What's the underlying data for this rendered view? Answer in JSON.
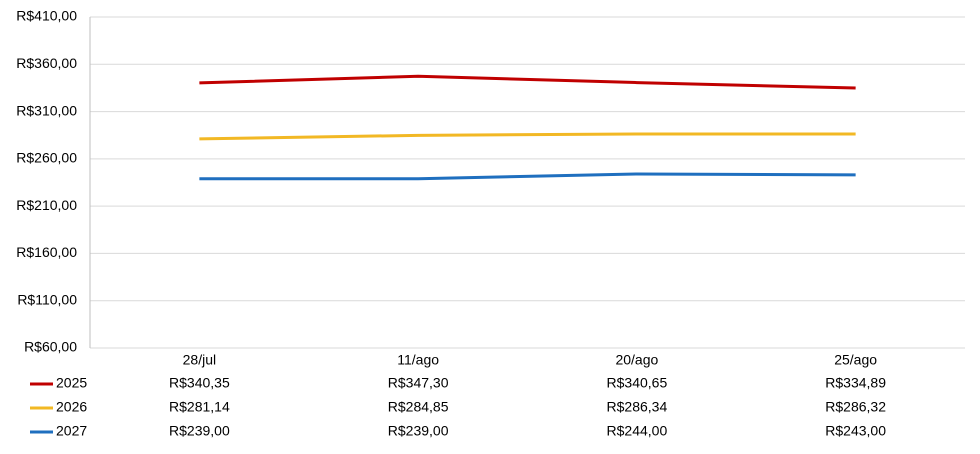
{
  "chart_data": {
    "type": "line",
    "categories": [
      "28/jul",
      "11/ago",
      "20/ago",
      "25/ago"
    ],
    "series": [
      {
        "name": "2025",
        "color": "#c00000",
        "values": [
          340.35,
          347.3,
          340.65,
          334.89
        ],
        "value_labels": [
          "R$340,35",
          "R$347,30",
          "R$340,65",
          "R$334,89"
        ]
      },
      {
        "name": "2026",
        "color": "#f2b824",
        "values": [
          281.14,
          284.85,
          286.34,
          286.32
        ],
        "value_labels": [
          "R$281,14",
          "R$284,85",
          "R$286,34",
          "R$286,32"
        ]
      },
      {
        "name": "2027",
        "color": "#1f6fbf",
        "values": [
          239.0,
          239.0,
          244.0,
          243.0
        ],
        "value_labels": [
          "R$239,00",
          "R$239,00",
          "R$244,00",
          "R$243,00"
        ]
      }
    ],
    "ylim": [
      60,
      410
    ],
    "yticks": [
      {
        "value": 60,
        "label": "R$60,00"
      },
      {
        "value": 110,
        "label": "R$110,00"
      },
      {
        "value": 160,
        "label": "R$160,00"
      },
      {
        "value": 210,
        "label": "R$210,00"
      },
      {
        "value": 260,
        "label": "R$260,00"
      },
      {
        "value": 310,
        "label": "R$310,00"
      },
      {
        "value": 360,
        "label": "R$360,00"
      },
      {
        "value": 410,
        "label": "R$410,00"
      }
    ],
    "grid": true
  }
}
